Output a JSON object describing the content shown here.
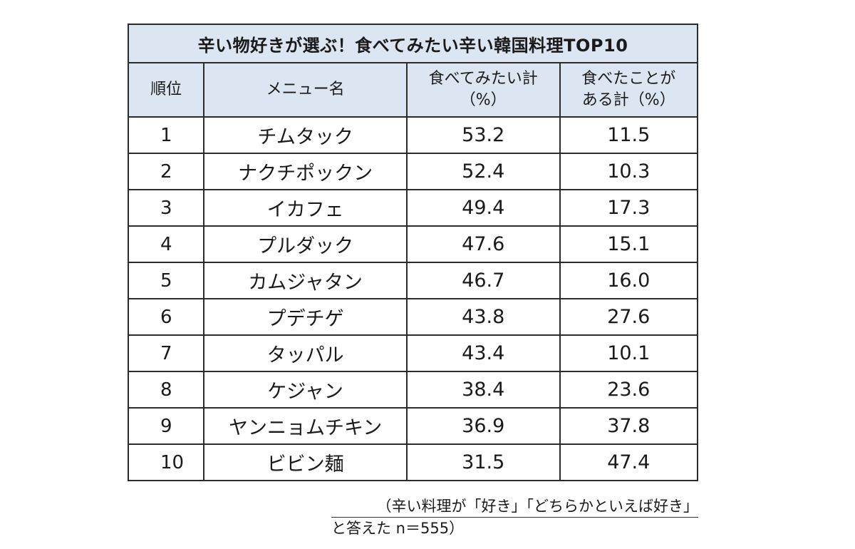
{
  "table": {
    "title": "辛い物好きが選ぶ！食べてみたい辛い韓国料理TOP10",
    "headers": {
      "rank": "順位",
      "menu": "メニュー名",
      "want_line1": "食べてみたい計",
      "want_line2": "（%）",
      "eaten_line1": "食べたことが",
      "eaten_line2": "ある計（%）"
    },
    "rows": [
      {
        "rank": "1",
        "menu": "チムタック",
        "want": "53.2",
        "eaten": "11.5"
      },
      {
        "rank": "2",
        "menu": "ナクチポックン",
        "want": "52.4",
        "eaten": "10.3"
      },
      {
        "rank": "3",
        "menu": "イカフェ",
        "want": "49.4",
        "eaten": "17.3"
      },
      {
        "rank": "4",
        "menu": "プルダック",
        "want": "47.6",
        "eaten": "15.1"
      },
      {
        "rank": "5",
        "menu": "カムジャタン",
        "want": "46.7",
        "eaten": "16.0"
      },
      {
        "rank": "6",
        "menu": "プデチゲ",
        "want": "43.8",
        "eaten": "27.6"
      },
      {
        "rank": "7",
        "menu": "タッパル",
        "want": "43.4",
        "eaten": "10.1"
      },
      {
        "rank": "8",
        "menu": "ケジャン",
        "want": "38.4",
        "eaten": "23.6"
      },
      {
        "rank": "9",
        "menu": "ヤンニョムチキン",
        "want": "36.9",
        "eaten": "37.8"
      },
      {
        "rank": "10",
        "menu": "ビビン麺",
        "want": "31.5",
        "eaten": "47.4"
      }
    ]
  },
  "note": {
    "line1": "（辛い料理が「好き」「どちらかといえば好き」",
    "line2": "と答えた n＝555）"
  }
}
